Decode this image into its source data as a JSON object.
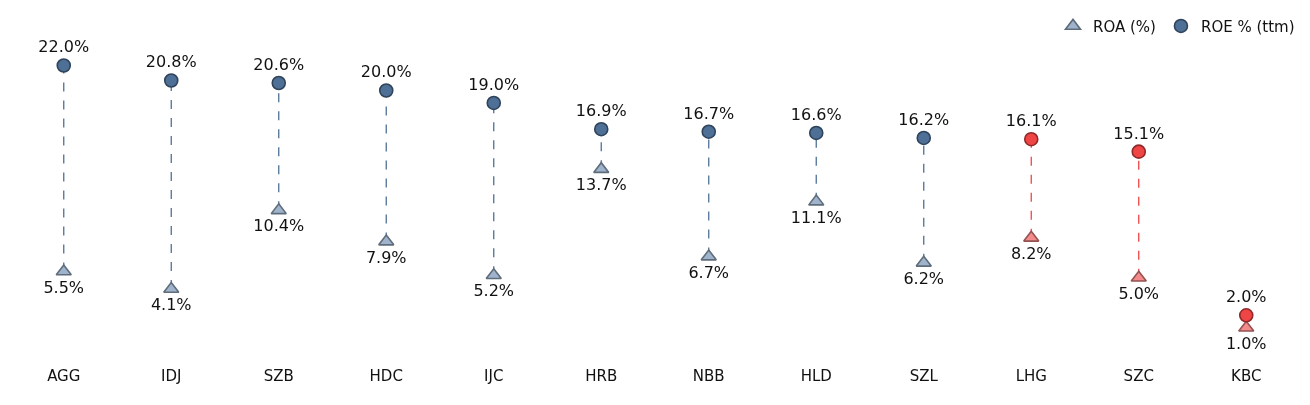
{
  "chart_data": {
    "type": "scatter",
    "categories": [
      "AGG",
      "IDJ",
      "SZB",
      "HDC",
      "IJC",
      "HRB",
      "NBB",
      "HLD",
      "SZL",
      "LHG",
      "SZC",
      "KBC"
    ],
    "series": [
      {
        "name": "ROA (%)",
        "marker": "triangle",
        "colors": [
          "#9fb4cc",
          "#9fb4cc",
          "#9fb4cc",
          "#9fb4cc",
          "#9fb4cc",
          "#9fb4cc",
          "#9fb4cc",
          "#9fb4cc",
          "#9fb4cc",
          "#f58a8a",
          "#f58a8a",
          "#f58a8a"
        ],
        "values": [
          5.5,
          4.1,
          10.4,
          7.9,
          5.2,
          13.7,
          6.7,
          11.1,
          6.2,
          8.2,
          5.0,
          1.0
        ],
        "value_labels": [
          "5.5%",
          "4.1%",
          "10.4%",
          "7.9%",
          "5.2%",
          "13.7%",
          "6.7%",
          "11.1%",
          "6.2%",
          "8.2%",
          "5.0%",
          "1.0%"
        ]
      },
      {
        "name": "ROE % (ttm)",
        "marker": "circle",
        "colors": [
          "#4e7096",
          "#4e7096",
          "#4e7096",
          "#4e7096",
          "#4e7096",
          "#4e7096",
          "#4e7096",
          "#4e7096",
          "#4e7096",
          "#f04545",
          "#f04545",
          "#f04545"
        ],
        "values": [
          22.0,
          20.8,
          20.6,
          20.0,
          19.0,
          16.9,
          16.7,
          16.6,
          16.2,
          16.1,
          15.1,
          2.0
        ],
        "value_labels": [
          "22.0%",
          "20.8%",
          "20.6%",
          "20.0%",
          "19.0%",
          "16.9%",
          "16.7%",
          "16.6%",
          "16.2%",
          "16.1%",
          "15.1%",
          "2.0%"
        ]
      }
    ],
    "line_style": "dashed",
    "legend": "top right"
  }
}
